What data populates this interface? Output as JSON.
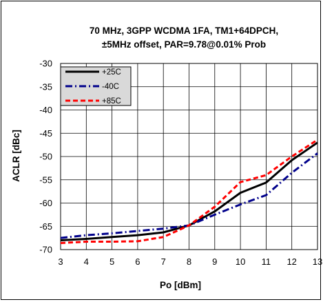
{
  "chart_data": {
    "type": "line",
    "title_lines": [
      "70 MHz, 3GPP WCDMA 1FA, TM1+64DPCH,",
      "±5MHz offset, PAR=9.78@0.01% Prob"
    ],
    "xlabel": "Po [dBm]",
    "ylabel": "ACLR [dBc]",
    "xlim": [
      3,
      13
    ],
    "ylim": [
      -70,
      -30
    ],
    "x_ticks": [
      3,
      4,
      5,
      6,
      7,
      8,
      9,
      10,
      11,
      12,
      13
    ],
    "y_ticks": [
      -30,
      -35,
      -40,
      -45,
      -50,
      -55,
      -60,
      -65,
      -70
    ],
    "grid": true,
    "legend_position": "top-left",
    "series": [
      {
        "name": "+25C",
        "color": "#000000",
        "dash": "solid",
        "x": [
          3,
          4,
          5,
          6,
          7,
          8,
          9,
          10,
          11,
          12,
          13
        ],
        "y": [
          -68.0,
          -67.7,
          -67.3,
          -66.9,
          -66.3,
          -64.8,
          -61.8,
          -57.8,
          -55.6,
          -50.8,
          -47.0
        ]
      },
      {
        "name": "-40C",
        "color": "#00008b",
        "dash": "dashdot",
        "x": [
          3,
          4,
          5,
          6,
          7,
          8,
          9,
          10,
          11,
          12,
          13
        ],
        "y": [
          -67.5,
          -66.9,
          -66.5,
          -66.0,
          -65.5,
          -64.8,
          -62.5,
          -60.3,
          -58.3,
          -53.5,
          -49.3
        ]
      },
      {
        "name": "+85C",
        "color": "#ff0000",
        "dash": "dashed",
        "x": [
          3,
          4,
          5,
          6,
          7,
          8,
          9,
          10,
          11,
          12,
          13
        ],
        "y": [
          -68.6,
          -68.3,
          -68.3,
          -68.2,
          -67.3,
          -64.8,
          -60.8,
          -55.5,
          -54.0,
          -50.0,
          -46.4
        ]
      }
    ]
  }
}
